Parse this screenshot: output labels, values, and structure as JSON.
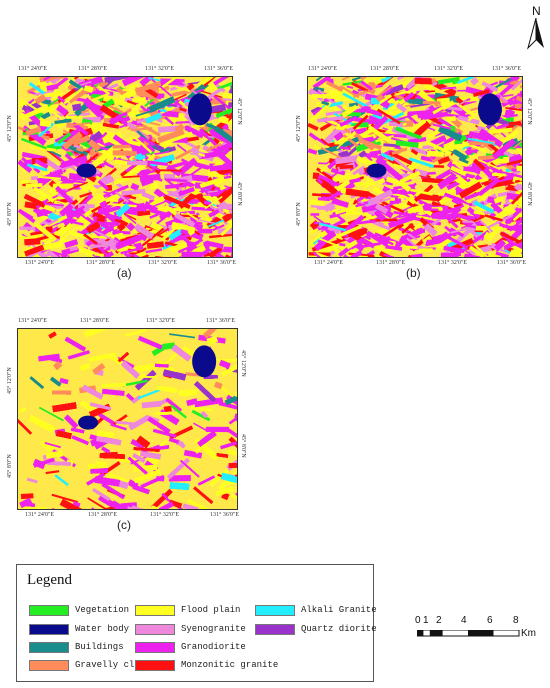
{
  "north_arrow": {
    "letter": "N",
    "icon": "north-arrow-icon"
  },
  "panels": [
    {
      "caption": "(a)",
      "top_ticks": [
        "131° 24'0\"E",
        "131° 28'0\"E",
        "131° 32'0\"E",
        "131° 36'0\"E"
      ],
      "bottom_ticks": [
        "131° 24'0\"E",
        "131° 28'0\"E",
        "131° 32'0\"E",
        "131° 36'0\"E"
      ],
      "left_ticks": [
        "45° 12'0\"N",
        "45° 8'0\"N"
      ],
      "right_ticks": [
        "45° 12'0\"N",
        "45° 8'0\"N"
      ]
    },
    {
      "caption": "(b)",
      "top_ticks": [
        "131° 24'0\"E",
        "131° 28'0\"E",
        "131° 32'0\"E",
        "131° 36'0\"E"
      ],
      "bottom_ticks": [
        "131° 24'0\"E",
        "131° 28'0\"E",
        "131° 32'0\"E",
        "131° 36'0\"E"
      ],
      "left_ticks": [
        "45° 12'0\"N",
        "45° 8'0\"N"
      ],
      "right_ticks": [
        "45° 12'0\"N",
        "45° 8'0\"N"
      ]
    },
    {
      "caption": "(c)",
      "top_ticks": [
        "131° 24'0\"E",
        "131° 28'0\"E",
        "131° 32'0\"E",
        "131° 36'0\"E"
      ],
      "bottom_ticks": [
        "131° 24'0\"E",
        "131° 28'0\"E",
        "131° 32'0\"E",
        "131° 36'0\"E"
      ],
      "left_ticks": [
        "45° 12'0\"N",
        "45° 8'0\"N"
      ],
      "right_ticks": [
        "45° 12'0\"N",
        "45° 8'0\"N"
      ]
    }
  ],
  "legend": {
    "title": "Legend",
    "items": [
      {
        "label": "Vegetation",
        "color": "#22ee22"
      },
      {
        "label": "Water body",
        "color": "#0a0a8c"
      },
      {
        "label": "Buildings",
        "color": "#1a8c8c"
      },
      {
        "label": "Gravelly clay",
        "color": "#ff8c5a"
      },
      {
        "label": "Flood plain",
        "color": "#ffff22"
      },
      {
        "label": "Syenogranite",
        "color": "#ee88dd"
      },
      {
        "label": "Granodiorite",
        "color": "#ee22ee"
      },
      {
        "label": "Monzonitic granite",
        "color": "#ff1111"
      },
      {
        "label": "Alkali Granite",
        "color": "#22eeff"
      },
      {
        "label": "Quartz diorite",
        "color": "#9933cc"
      }
    ]
  },
  "scale_bar": {
    "ticks": [
      "0",
      "1",
      "2",
      "4",
      "6",
      "8"
    ],
    "unit": "Km"
  }
}
